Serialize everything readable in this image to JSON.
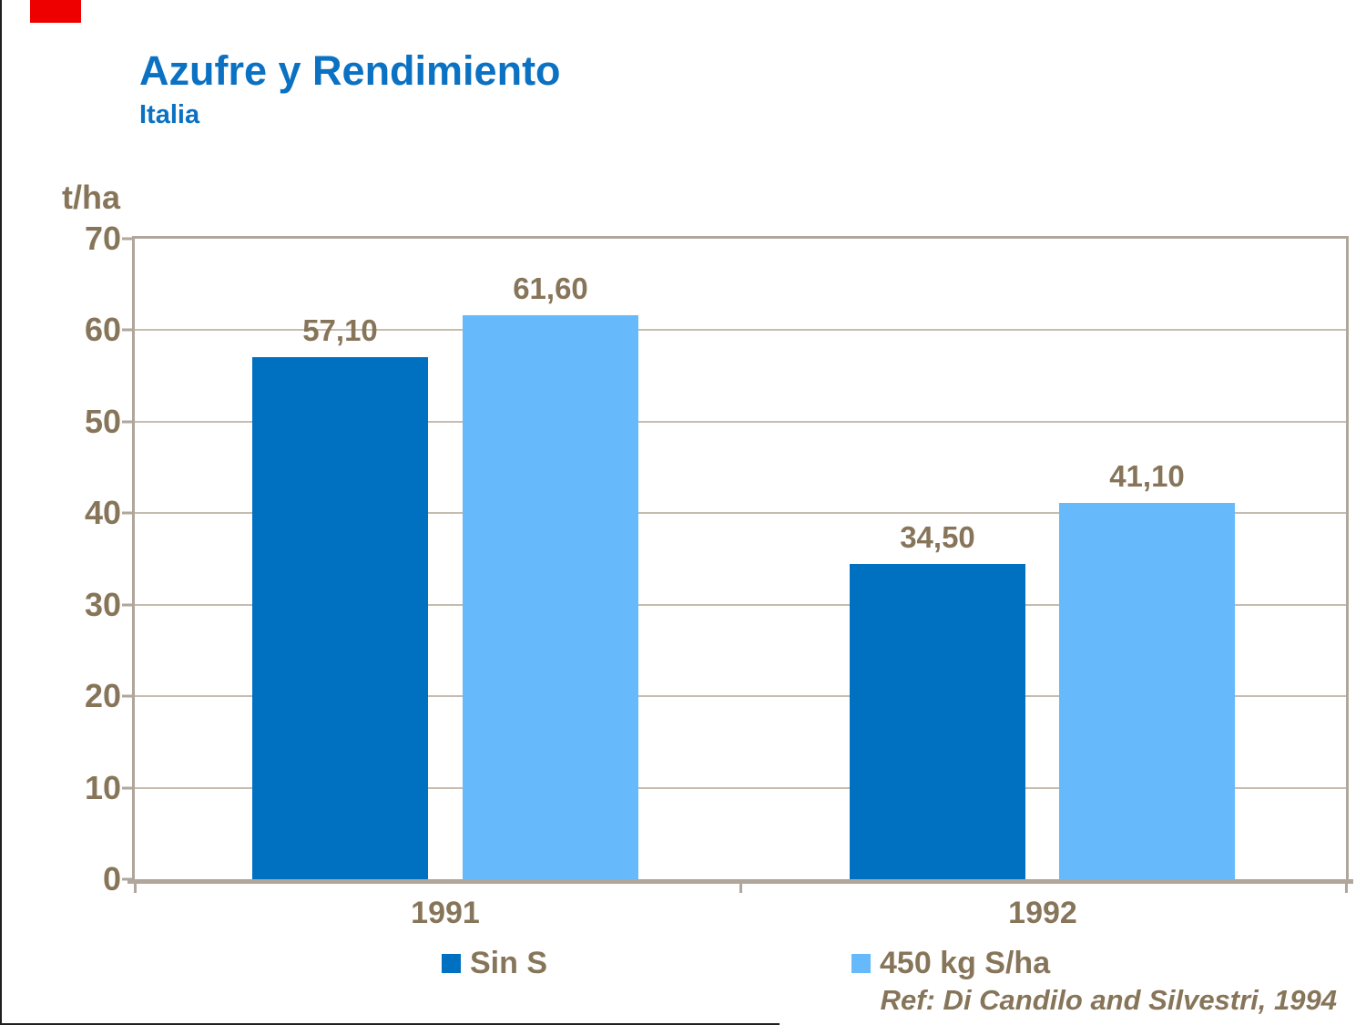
{
  "page": {
    "background": "#FFFFFF",
    "edge_line_color": "#1F1F1F",
    "corner_mark_color": "#EE0000",
    "title_color": "#0A71C3",
    "text_color": "#87755A",
    "frame_color": "#B0A69B",
    "grid_color": "#C6BCAF"
  },
  "chart_data": {
    "type": "bar",
    "title": "Azufre y Rendimiento",
    "subtitle": "Italia",
    "unit_label": "t/ha",
    "categories": [
      "1991",
      "1992"
    ],
    "series": [
      {
        "name": "Sin S",
        "color": "#0070C0",
        "values": [
          57.1,
          34.5
        ],
        "value_labels": [
          "57,10",
          "34,50"
        ]
      },
      {
        "name": "450 kg S/ha",
        "color": "#66B9FA",
        "values": [
          61.6,
          41.1
        ],
        "value_labels": [
          "61,60",
          "41,10"
        ]
      }
    ],
    "ylim": [
      0,
      70
    ],
    "yticks": [
      0,
      10,
      20,
      30,
      40,
      50,
      60,
      70
    ],
    "grid": true,
    "legend_position": "bottom",
    "reference": "Ref: Di Candilo and Silvestri, 1994"
  }
}
